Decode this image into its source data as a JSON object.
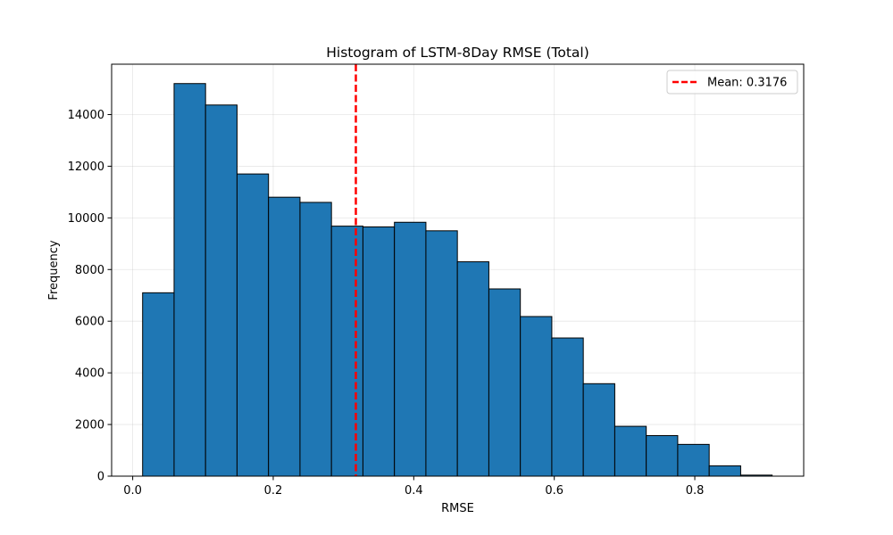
{
  "chart_data": {
    "type": "bar",
    "title": "Histogram of LSTM-8Day RMSE (Total)",
    "xlabel": "RMSE",
    "ylabel": "Frequency",
    "xlim": [
      -0.03,
      0.955
    ],
    "ylim": [
      0,
      15950
    ],
    "xticks": [
      0.0,
      0.2,
      0.4,
      0.6,
      0.8
    ],
    "xtick_labels": [
      "0.0",
      "0.2",
      "0.4",
      "0.6",
      "0.8"
    ],
    "yticks": [
      0,
      2000,
      4000,
      6000,
      8000,
      10000,
      12000,
      14000
    ],
    "ytick_labels": [
      "0",
      "2000",
      "4000",
      "6000",
      "8000",
      "10000",
      "12000",
      "14000"
    ],
    "grid": true,
    "bin_edges": [
      0.0141,
      0.0589,
      0.1037,
      0.1485,
      0.1933,
      0.2381,
      0.2829,
      0.3277,
      0.3725,
      0.4173,
      0.4621,
      0.5069,
      0.5517,
      0.5965,
      0.6413,
      0.6861,
      0.7309,
      0.7757,
      0.8205,
      0.8653,
      0.9101
    ],
    "values": [
      7100,
      15200,
      14370,
      11700,
      10800,
      10600,
      9680,
      9650,
      9830,
      9500,
      8300,
      7250,
      6180,
      5350,
      3580,
      1930,
      1570,
      1230,
      400,
      40
    ],
    "bar_color": "#1f77b4",
    "edge_color": "#000000",
    "mean_line": {
      "value": 0.3176,
      "label": "Mean: 0.3176",
      "color": "#ff0000",
      "style": "dashed"
    },
    "legend": {
      "placement": "top-right",
      "entries": [
        "Mean: 0.3176"
      ]
    }
  }
}
